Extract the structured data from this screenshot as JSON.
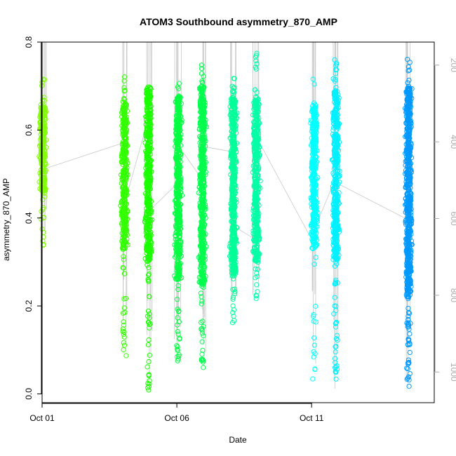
{
  "chart_data": {
    "type": "scatter",
    "title": "ATOM3 Southbound asymmetry_870_AMP",
    "xlabel": "Date",
    "ylabel": "asymmetry_870_AMP",
    "xlim": [
      0.0,
      14.55
    ],
    "ylim": [
      -0.02,
      0.8
    ],
    "x_ticks": [
      {
        "value": 0,
        "label": "Oct 01"
      },
      {
        "value": 5,
        "label": "Oct 06"
      },
      {
        "value": 10,
        "label": "Oct 11"
      }
    ],
    "y_ticks": [
      {
        "value": 0.0,
        "label": "0.0"
      },
      {
        "value": 0.2,
        "label": "0.2"
      },
      {
        "value": 0.4,
        "label": "0.4"
      },
      {
        "value": 0.6,
        "label": "0.6"
      },
      {
        "value": 0.8,
        "label": "0.8"
      }
    ],
    "y2_range": [
      1080,
      140
    ],
    "y2_ticks": [
      {
        "value": 200,
        "label": "200"
      },
      {
        "value": 400,
        "label": "400"
      },
      {
        "value": 600,
        "label": "600"
      },
      {
        "value": 800,
        "label": "800"
      },
      {
        "value": 1000,
        "label": "1000"
      }
    ],
    "grid": false,
    "legend": "none",
    "colors": {
      "profile_line": "#c8c8c8",
      "axis": "#000000",
      "secondary_axis": "#aaaaaa"
    },
    "series": [
      {
        "x": 0.03,
        "color": "#80ff00",
        "y_range": [
          0.335,
          0.73
        ],
        "core": [
          0.46,
          0.66
        ],
        "n_points": 300
      },
      {
        "x": 3.05,
        "color": "#33ff00",
        "y_range": [
          0.07,
          0.73
        ],
        "core": [
          0.33,
          0.66
        ],
        "n_points": 400
      },
      {
        "x": 3.95,
        "color": "#1aff00",
        "y_range": [
          0.005,
          0.72
        ],
        "core": [
          0.3,
          0.7
        ],
        "n_points": 500
      },
      {
        "x": 5.05,
        "color": "#00ff40",
        "y_range": [
          0.07,
          0.71
        ],
        "core": [
          0.26,
          0.68
        ],
        "n_points": 500
      },
      {
        "x": 5.95,
        "color": "#00ff4d",
        "y_range": [
          0.055,
          0.755
        ],
        "core": [
          0.25,
          0.7
        ],
        "n_points": 550
      },
      {
        "x": 7.1,
        "color": "#00ff99",
        "y_range": [
          0.16,
          0.72
        ],
        "core": [
          0.27,
          0.68
        ],
        "n_points": 500
      },
      {
        "x": 7.95,
        "color": "#00ffa6",
        "y_range": [
          0.2,
          0.775
        ],
        "core": [
          0.3,
          0.67
        ],
        "n_points": 450
      },
      {
        "x": 10.1,
        "color": "#00ffff",
        "y_range": [
          0.03,
          0.74
        ],
        "core": [
          0.33,
          0.66
        ],
        "n_points": 400
      },
      {
        "x": 10.9,
        "color": "#00f0ff",
        "y_range": [
          0.01,
          0.765
        ],
        "core": [
          0.3,
          0.69
        ],
        "n_points": 500
      },
      {
        "x": 13.6,
        "color": "#0099ff",
        "y_range": [
          0.005,
          0.765
        ],
        "core": [
          0.22,
          0.7
        ],
        "n_points": 700
      }
    ]
  }
}
